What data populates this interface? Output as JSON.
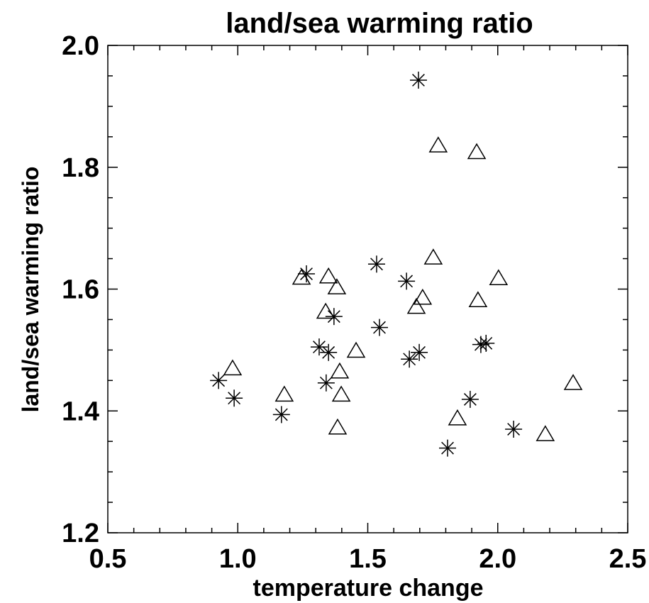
{
  "chart_data": {
    "type": "scatter",
    "title": "land/sea warming ratio",
    "x_label": "temperature change",
    "y_label": "land/sea warming ratio",
    "xlim": [
      0.5,
      2.5
    ],
    "ylim": [
      1.2,
      2.0
    ],
    "xticks": [
      0.5,
      {
        "value": 1.0,
        "label": "1.0"
      },
      1.5,
      {
        "value": 2.0,
        "label": "2.0"
      },
      2.5
    ],
    "yticks": [
      1.2,
      1.4,
      1.6,
      1.8,
      {
        "value": 2.0,
        "label": "2.0"
      }
    ],
    "xminorticks": [
      0.6,
      0.7,
      0.8,
      0.9,
      1.1,
      1.2,
      1.3,
      1.4,
      1.6,
      1.7,
      1.8,
      1.9,
      2.1,
      2.2,
      2.3,
      2.4
    ],
    "yminorticks": [
      1.25,
      1.3,
      1.35,
      1.45,
      1.5,
      1.55,
      1.65,
      1.7,
      1.75,
      1.85,
      1.9,
      1.95
    ],
    "color": "#000000",
    "series": [
      {
        "marker": "asterisk",
        "x": [
          1.695,
          0.926,
          0.986,
          1.168,
          1.264,
          1.313,
          1.349,
          1.34,
          1.37,
          1.534,
          1.545,
          1.649,
          1.66,
          1.698,
          1.807,
          1.894,
          1.935,
          1.955,
          2.061
        ],
        "y": [
          1.943,
          1.45,
          1.421,
          1.394,
          1.625,
          1.505,
          1.496,
          1.446,
          1.555,
          1.641,
          1.537,
          1.613,
          1.485,
          1.496,
          1.339,
          1.419,
          1.509,
          1.511,
          1.37
        ]
      },
      {
        "marker": "triangle",
        "x": [
          0.98,
          1.179,
          1.245,
          1.349,
          1.338,
          1.381,
          1.455,
          1.392,
          1.398,
          1.384,
          1.687,
          1.711,
          1.752,
          1.771,
          1.919,
          1.924,
          2.003,
          1.845,
          2.183,
          2.29
        ],
        "y": [
          1.469,
          1.426,
          1.618,
          1.62,
          1.562,
          1.602,
          1.498,
          1.464,
          1.426,
          1.372,
          1.57,
          1.585,
          1.651,
          1.835,
          1.824,
          1.581,
          1.617,
          1.387,
          1.361,
          1.445
        ]
      }
    ]
  }
}
